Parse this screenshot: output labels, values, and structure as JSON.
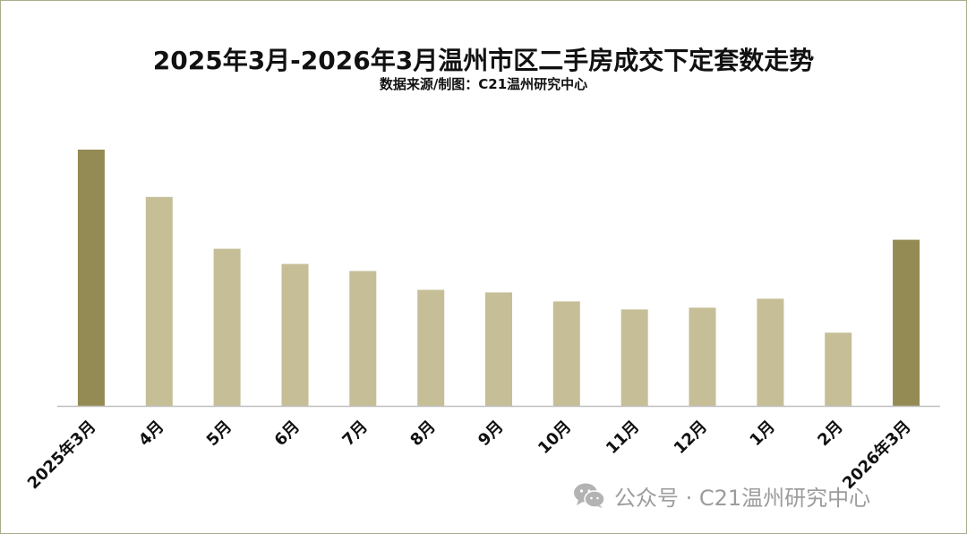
{
  "chart_data": {
    "type": "bar",
    "title": "2025年3月-2026年3月温州市区二手房成交下定套数走势",
    "subtitle": "数据来源/制图：C21温州研究中心",
    "categories": [
      "2025年3月",
      "4月",
      "5月",
      "6月",
      "7月",
      "8月",
      "9月",
      "10月",
      "11月",
      "12月",
      "1月",
      "2月",
      "2026年3月"
    ],
    "values": [
      287,
      234,
      176,
      159,
      151,
      130,
      127,
      117,
      108,
      110,
      120,
      82,
      186
    ],
    "ylim": [
      0,
      300
    ],
    "highlight_indices": [
      0,
      12
    ],
    "grid": false,
    "colors": {
      "bar": "#c5be97",
      "highlight": "#948a54",
      "axis": "#bfbfbf",
      "frame": "#a7ad8c",
      "text": "#111111"
    }
  },
  "watermark": {
    "icon": "wechat-icon",
    "text": "公众号 · C21温州研究中心"
  }
}
